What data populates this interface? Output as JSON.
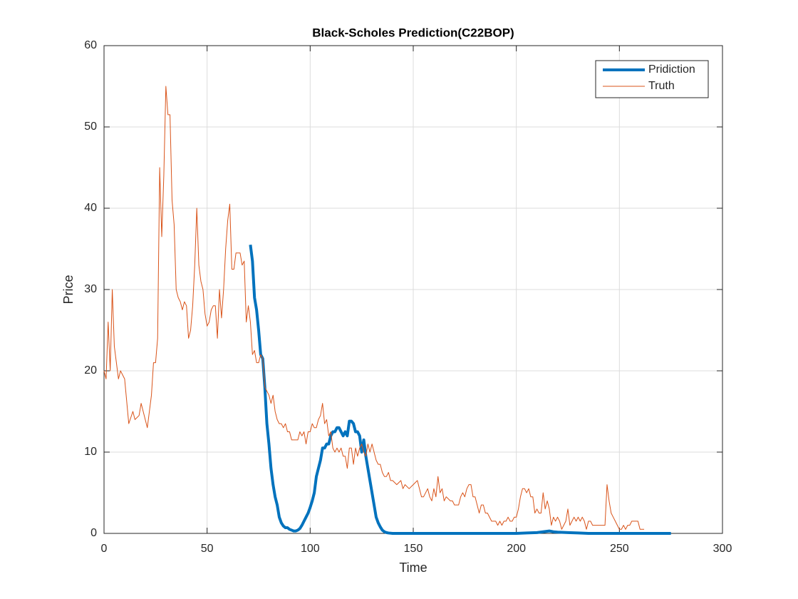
{
  "chart_data": {
    "type": "line",
    "title": "Black-Scholes Prediction(C22BOP)",
    "xlabel": "Time",
    "ylabel": "Price",
    "xlim": [
      0,
      300
    ],
    "ylim": [
      0,
      60
    ],
    "xticks": [
      0,
      50,
      100,
      150,
      200,
      250,
      300
    ],
    "yticks": [
      0,
      10,
      20,
      30,
      40,
      50,
      60
    ],
    "grid": true,
    "legend": "top-right",
    "series": [
      {
        "name": "Pridiction",
        "color": "#0072BD",
        "width": 4,
        "x": [
          71,
          72,
          73,
          74,
          75,
          76,
          77,
          78,
          79,
          80,
          81,
          82,
          83,
          84,
          85,
          86,
          87,
          88,
          89,
          90,
          91,
          92,
          93,
          94,
          95,
          96,
          97,
          98,
          99,
          100,
          101,
          102,
          103,
          104,
          105,
          106,
          107,
          108,
          109,
          110,
          111,
          112,
          113,
          114,
          115,
          116,
          117,
          118,
          119,
          120,
          121,
          122,
          123,
          124,
          125,
          126,
          127,
          128,
          129,
          130,
          131,
          132,
          133,
          134,
          135,
          136,
          137,
          138,
          140,
          150,
          160,
          170,
          180,
          190,
          200,
          205,
          210,
          213,
          216,
          218,
          220,
          225,
          230,
          235,
          250,
          275
        ],
        "values": [
          35.5,
          33.5,
          29,
          27.5,
          25,
          22,
          21.5,
          18,
          13.5,
          11,
          8,
          6,
          4.5,
          3.5,
          2,
          1.3,
          0.9,
          0.7,
          0.7,
          0.5,
          0.4,
          0.3,
          0.3,
          0.4,
          0.6,
          1,
          1.5,
          2,
          2.5,
          3.2,
          4,
          5,
          7,
          8,
          9,
          10.5,
          10.5,
          11,
          11,
          12,
          12.5,
          12.5,
          13,
          13,
          12.5,
          12,
          12.5,
          12,
          13.8,
          13.8,
          13.5,
          12.5,
          12.5,
          12,
          10,
          11.5,
          9.5,
          8,
          6.5,
          5,
          3.5,
          2,
          1.3,
          0.8,
          0.4,
          0.2,
          0.1,
          0.05,
          0,
          0,
          0,
          0,
          0,
          0,
          0,
          0.05,
          0.1,
          0.2,
          0.3,
          0.2,
          0.15,
          0.1,
          0.05,
          0,
          0,
          0
        ]
      },
      {
        "name": "Truth",
        "color": "#D95319",
        "width": 1,
        "x": [
          0,
          1,
          2,
          3,
          4,
          5,
          6,
          7,
          8,
          10,
          12,
          14,
          15,
          17,
          18,
          20,
          21,
          23,
          24,
          25,
          26,
          27,
          28,
          29,
          30,
          31,
          32,
          33,
          34,
          35,
          36,
          37,
          38,
          39,
          40,
          41,
          42,
          43,
          44,
          45,
          46,
          47,
          48,
          49,
          50,
          51,
          52,
          53,
          54,
          55,
          56,
          57,
          58,
          59,
          60,
          61,
          62,
          63,
          64,
          65,
          66,
          67,
          68,
          69,
          70,
          71,
          72,
          73,
          74,
          75,
          76,
          77,
          78,
          79,
          80,
          81,
          82,
          83,
          84,
          85,
          86,
          87,
          88,
          89,
          90,
          91,
          92,
          94,
          95,
          96,
          97,
          98,
          99,
          100,
          101,
          102,
          103,
          104,
          105,
          106,
          107,
          108,
          109,
          110,
          111,
          112,
          113,
          114,
          115,
          116,
          117,
          118,
          119,
          120,
          121,
          122,
          123,
          124,
          125,
          126,
          127,
          128,
          129,
          130,
          131,
          132,
          133,
          134,
          135,
          136,
          137,
          138,
          139,
          140,
          142,
          144,
          145,
          146,
          148,
          150,
          152,
          153,
          154,
          155,
          157,
          158,
          159,
          160,
          161,
          162,
          163,
          164,
          165,
          166,
          168,
          169,
          170,
          171,
          172,
          173,
          174,
          175,
          176,
          177,
          178,
          179,
          180,
          181,
          182,
          183,
          184,
          185,
          186,
          188,
          190,
          191,
          192,
          193,
          194,
          195,
          196,
          197,
          198,
          199,
          200,
          201,
          202,
          203,
          204,
          205,
          206,
          207,
          208,
          209,
          210,
          211,
          212,
          213,
          214,
          215,
          216,
          217,
          218,
          219,
          220,
          221,
          222,
          223,
          224,
          225,
          226,
          227,
          228,
          229,
          230,
          231,
          232,
          233,
          234,
          235,
          236,
          237,
          238,
          239,
          240,
          241,
          242,
          243,
          244,
          245,
          246,
          247,
          248,
          249,
          250,
          251,
          252,
          253,
          254,
          255,
          256,
          257,
          258,
          259,
          260,
          261,
          262
        ],
        "values": [
          20,
          19,
          26,
          20,
          30,
          23,
          21,
          19,
          20,
          19,
          13.5,
          15,
          14,
          14.5,
          16,
          14,
          13,
          17,
          21,
          21,
          24,
          45,
          36.5,
          44,
          55,
          51.5,
          51.5,
          41,
          38,
          30,
          29,
          28.5,
          27.5,
          28.5,
          28,
          24,
          25,
          28,
          33,
          40,
          33,
          31,
          30,
          27,
          25.5,
          26,
          27.5,
          28,
          28,
          24,
          30,
          26.5,
          30,
          35,
          38.5,
          40.5,
          32.5,
          32.5,
          34.5,
          34.5,
          34.5,
          33,
          33.5,
          26,
          28,
          26,
          22,
          22.5,
          21,
          21,
          22,
          21.5,
          18,
          17.5,
          17,
          16,
          17,
          15,
          14,
          13.5,
          13.5,
          13,
          13.5,
          12.5,
          12.5,
          11.5,
          11.5,
          11.5,
          12.5,
          12,
          12.5,
          11,
          12.5,
          12.5,
          13.5,
          13,
          13,
          14,
          14.5,
          16,
          13.5,
          14,
          12,
          12.5,
          10.5,
          10,
          10.5,
          10,
          10.5,
          9.5,
          9.5,
          8,
          10.5,
          10.5,
          8.5,
          10.5,
          9.5,
          10.5,
          11,
          10,
          9.5,
          11,
          10,
          11,
          10,
          9,
          8.5,
          8.5,
          7.5,
          7,
          7,
          7.5,
          6.5,
          6.5,
          6,
          6.5,
          5.5,
          6,
          5.5,
          6,
          6.5,
          5.5,
          4.5,
          4.5,
          5.5,
          4.5,
          4,
          5.5,
          4.5,
          7,
          5,
          5.5,
          4,
          4.5,
          4,
          4,
          3.5,
          3.5,
          3.5,
          4.5,
          5,
          4.5,
          5.5,
          6,
          6,
          4.5,
          4.5,
          3.5,
          2.5,
          3.5,
          3.5,
          2.5,
          2.5,
          1.5,
          1.5,
          1,
          1.5,
          1,
          1.5,
          1.5,
          2,
          1.5,
          1.5,
          2,
          2,
          3,
          4.5,
          5.5,
          5.5,
          5,
          5.5,
          4.5,
          4.5,
          2.5,
          3,
          2.5,
          2.5,
          5,
          3,
          4,
          3,
          1,
          2,
          1.5,
          2,
          1.5,
          0.5,
          1,
          1.5,
          3,
          1,
          1.5,
          2,
          1.5,
          2,
          1.5,
          2,
          1.5,
          0.5,
          1.5,
          1.5,
          1,
          1,
          1,
          1,
          1,
          1,
          1,
          6,
          4,
          2.5,
          2,
          1.5,
          1,
          0.5,
          0.5,
          1,
          0.5,
          1,
          1,
          1.5,
          1.5,
          1.5,
          1.5,
          0.5,
          0.5,
          0.5
        ]
      }
    ]
  }
}
